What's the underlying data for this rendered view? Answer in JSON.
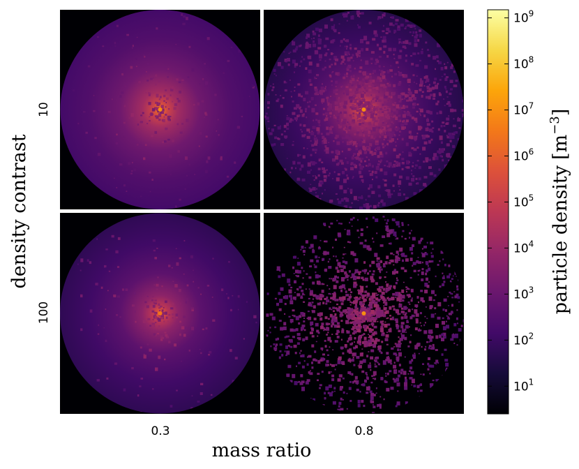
{
  "chart_data": {
    "type": "heatmap",
    "layout": "2x2 grid of panels",
    "xlabel": "mass ratio",
    "ylabel": "density contrast",
    "column_labels": [
      "0.3",
      "0.8"
    ],
    "row_labels": [
      "10",
      "100"
    ],
    "panels": [
      {
        "row": "10",
        "column": "0.3",
        "background_density": 150,
        "peak_density": 10000000.0,
        "pattern": "smooth halo with sparse clumps"
      },
      {
        "row": "10",
        "column": "0.8",
        "background_density": 40,
        "peak_density": 10000000.0,
        "pattern": "granular, many clumps"
      },
      {
        "row": "100",
        "column": "0.3",
        "background_density": 60,
        "peak_density": 3000000.0,
        "pattern": "smooth halo with sparse clumps"
      },
      {
        "row": "100",
        "column": "0.8",
        "background_density": 3,
        "peak_density": 10000000.0,
        "pattern": "sparse clumps on empty background"
      }
    ],
    "colorbar": {
      "label": "particle density",
      "unit_base": "m",
      "unit_exponent": "−3",
      "scale": "log",
      "colormap": "inferno",
      "range": [
        2.5,
        1500000000.0
      ],
      "ticks": [
        {
          "base": "10",
          "exp": "1"
        },
        {
          "base": "10",
          "exp": "2"
        },
        {
          "base": "10",
          "exp": "3"
        },
        {
          "base": "10",
          "exp": "4"
        },
        {
          "base": "10",
          "exp": "5"
        },
        {
          "base": "10",
          "exp": "6"
        },
        {
          "base": "10",
          "exp": "7"
        },
        {
          "base": "10",
          "exp": "8"
        },
        {
          "base": "10",
          "exp": "9"
        }
      ]
    }
  }
}
